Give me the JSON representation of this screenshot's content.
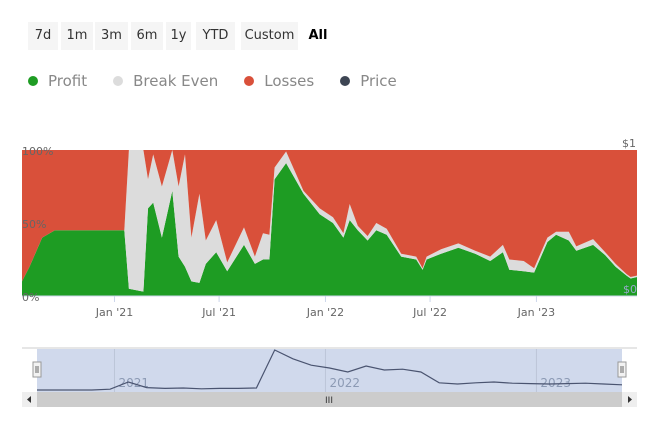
{
  "range_buttons": [
    "7d",
    "1m",
    "3m",
    "6m",
    "1y",
    "YTD",
    "Custom",
    "All"
  ],
  "active_range": "All",
  "legend": [
    {
      "label": "Profit",
      "color": "#1e9c23"
    },
    {
      "label": "Break Even",
      "color": "#dcdcdc"
    },
    {
      "label": "Losses",
      "color": "#d9503a"
    },
    {
      "label": "Price",
      "color": "#3d4553"
    }
  ],
  "chart_data": {
    "type": "area",
    "stacking": "percent",
    "x_tick_labels": [
      "Jan '21",
      "Jul '21",
      "Jan '22",
      "Jul '22",
      "Jan '23"
    ],
    "y_tick_labels": [
      "0%",
      "50%",
      "100%"
    ],
    "y2_tick_labels": [
      "$0",
      "$1"
    ],
    "ylim": [
      0,
      100
    ],
    "xlim": [
      "2020-07-25",
      "2023-06-24"
    ],
    "grid": false,
    "legend_position": "top-left",
    "x": [
      "2020-07-25",
      "2020-08-07",
      "2020-08-29",
      "2020-09-20",
      "2021-01-18",
      "2021-01-26",
      "2021-02-20",
      "2021-02-28",
      "2021-03-09",
      "2021-03-24",
      "2021-04-11",
      "2021-04-22",
      "2021-05-03",
      "2021-05-14",
      "2021-05-28",
      "2021-06-08",
      "2021-06-26",
      "2021-07-15",
      "2021-08-13",
      "2021-09-01",
      "2021-09-15",
      "2021-09-26",
      "2021-10-05",
      "2021-10-25",
      "2021-11-24",
      "2021-12-22",
      "2022-01-14",
      "2022-02-01",
      "2022-02-12",
      "2022-02-26",
      "2022-03-15",
      "2022-03-30",
      "2022-04-17",
      "2022-05-12",
      "2022-06-07",
      "2022-06-18",
      "2022-06-25",
      "2022-07-20",
      "2022-08-19",
      "2022-09-17",
      "2022-10-13",
      "2022-11-04",
      "2022-11-15",
      "2022-12-10",
      "2022-12-28",
      "2023-01-20",
      "2023-02-04",
      "2023-02-26",
      "2023-03-11",
      "2023-04-09",
      "2023-04-30",
      "2023-05-18",
      "2023-06-06",
      "2023-06-13",
      "2023-06-24"
    ],
    "series": [
      {
        "name": "Profit",
        "values": [
          10,
          20,
          40,
          45,
          45,
          5,
          3,
          60,
          64,
          40,
          72,
          27,
          20,
          10,
          9,
          22,
          30,
          17,
          35,
          22,
          25,
          25,
          80,
          91,
          70,
          56,
          50,
          40,
          52,
          45,
          38,
          45,
          42,
          27,
          25,
          18,
          25,
          29,
          33,
          29,
          24,
          30,
          18,
          17,
          16,
          37,
          42,
          38,
          31,
          35,
          28,
          20,
          14,
          12,
          13
        ]
      },
      {
        "name": "Break Even",
        "values": [
          0,
          0,
          0,
          0,
          0,
          95,
          97,
          20,
          33,
          35,
          28,
          48,
          77,
          30,
          61,
          16,
          22,
          6,
          12,
          5,
          18,
          17,
          8,
          8,
          2,
          4,
          4,
          3,
          11,
          3,
          3,
          5,
          4,
          2,
          2,
          1,
          2,
          3,
          3,
          2,
          3,
          5,
          7,
          7,
          3,
          3,
          2,
          6,
          3,
          4,
          2,
          2,
          1,
          1,
          1
        ]
      },
      {
        "name": "Losses",
        "values": [
          90,
          80,
          60,
          55,
          55,
          0,
          0,
          20,
          3,
          25,
          0,
          25,
          3,
          60,
          30,
          62,
          48,
          77,
          53,
          73,
          57,
          58,
          12,
          1,
          28,
          40,
          46,
          57,
          37,
          52,
          59,
          50,
          54,
          71,
          73,
          81,
          73,
          68,
          64,
          69,
          73,
          65,
          75,
          76,
          81,
          60,
          56,
          56,
          66,
          61,
          70,
          78,
          85,
          87,
          86
        ]
      }
    ]
  },
  "navigator": {
    "year_labels": [
      "2021",
      "2022",
      "2023"
    ],
    "price": [
      0,
      0,
      0,
      0,
      0.02,
      0.2,
      0.06,
      0.04,
      0.05,
      0.03,
      0.04,
      0.04,
      0.05,
      1,
      0.78,
      0.62,
      0.55,
      0.45,
      0.6,
      0.5,
      0.52,
      0.45,
      0.18,
      0.15,
      0.18,
      0.2,
      0.17,
      0.16,
      0.15,
      0.16,
      0.17,
      0.15,
      0.13
    ]
  },
  "scrollbar_grip": "III"
}
